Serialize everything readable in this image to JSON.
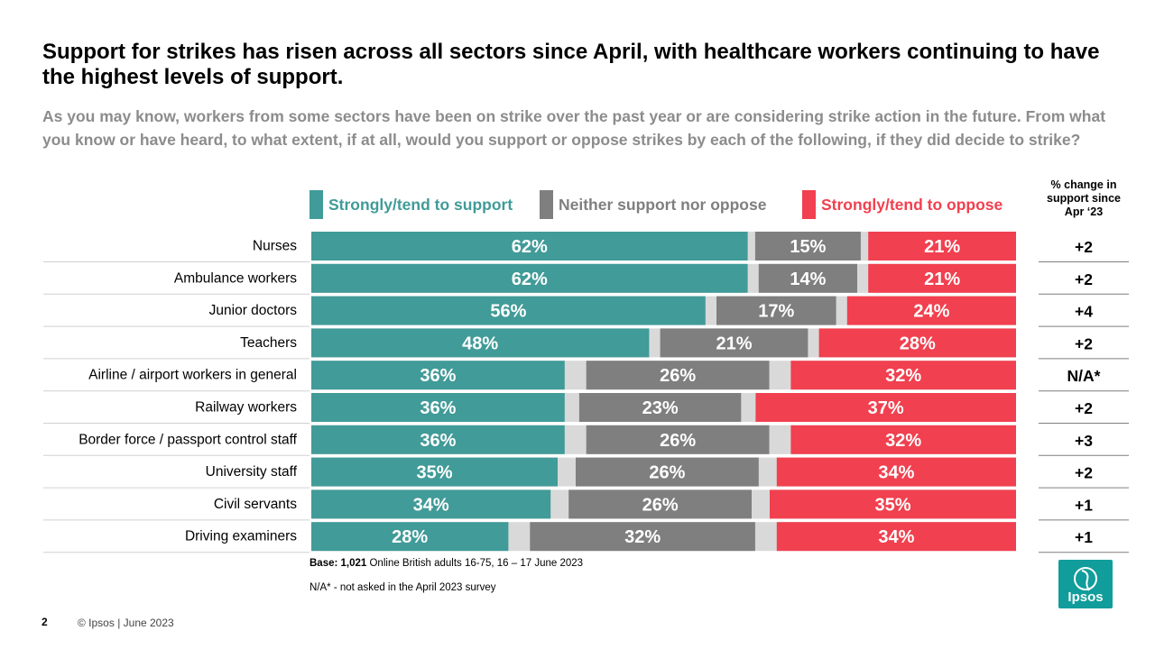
{
  "slide": {
    "title": "Support for strikes has risen across all sectors since April, with healthcare workers continuing to have the highest levels of support.",
    "question": "As you may know, workers from some sectors have been on strike over the past year or are considering strike action in the future.  From what you know or have heard, to what extent, if at all, would you support or oppose strikes by each of the following, if they did decide to strike?",
    "change_header": "% change in support since Apr ‘23",
    "base_bold": "Base: 1,021",
    "base_rest": " Online British adults 16-75, 16 – 17 June 2023",
    "na_note": "N/A* - not asked in the April 2023 survey",
    "page_number": "2",
    "copyright": "© Ipsos | June 2023",
    "logo_text": "Ipsos"
  },
  "colors": {
    "support": "#419b98",
    "neither": "#7f7f7f",
    "oppose": "#f1404f",
    "gap": "#d9d9d9",
    "logo": "#109d9b"
  },
  "chart_data": {
    "type": "bar",
    "orientation": "horizontal",
    "stacked": true,
    "title": "Support for strikes has risen across all sectors since April, with healthcare workers continuing to have the highest levels of support.",
    "categories": [
      "Nurses",
      "Ambulance workers",
      "Junior doctors",
      "Teachers",
      "Airline / airport workers in general",
      "Railway workers",
      "Border force / passport control staff",
      "University staff",
      "Civil servants",
      "Driving examiners"
    ],
    "series": [
      {
        "name": "Strongly/tend to support",
        "values": [
          62,
          62,
          56,
          48,
          36,
          36,
          36,
          35,
          34,
          28
        ]
      },
      {
        "name": "Neither support nor oppose",
        "values": [
          15,
          14,
          17,
          21,
          26,
          23,
          26,
          26,
          26,
          32
        ]
      },
      {
        "name": "Strongly/tend to oppose",
        "values": [
          21,
          21,
          24,
          28,
          32,
          37,
          32,
          34,
          35,
          34
        ]
      }
    ],
    "change_since_apr_23": [
      "+2",
      "+2",
      "+4",
      "+2",
      "N/A*",
      "+2",
      "+3",
      "+2",
      "+1",
      "+1"
    ],
    "xlim": [
      0,
      100
    ],
    "unit": "%",
    "legend_position": "top"
  }
}
